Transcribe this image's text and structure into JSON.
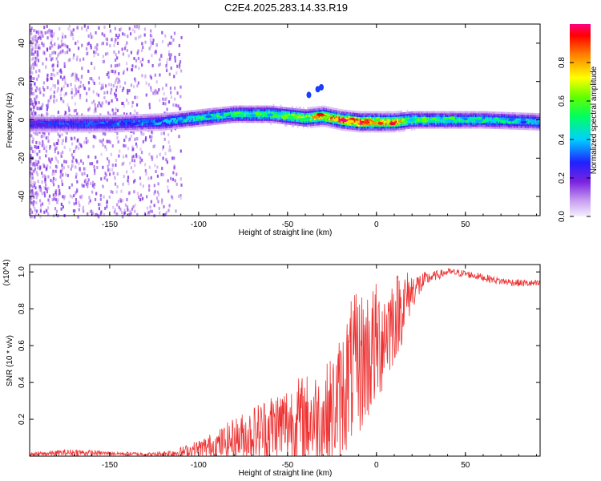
{
  "figure_title": "C2E4.2025.283.14.33.R19",
  "chart_data": [
    {
      "type": "heatmap",
      "title": "C2E4.2025.283.14.33.R19",
      "xlabel": "Height of straight line (km)",
      "ylabel": "Frequency (Hz)",
      "xlim": [
        -195,
        92
      ],
      "ylim": [
        -50,
        50
      ],
      "x_ticks": [
        -150,
        -100,
        -50,
        0,
        50
      ],
      "y_ticks": [
        -40,
        -20,
        0,
        20,
        40
      ],
      "colorbar": {
        "label": "Normalized spectral amplitude",
        "range": [
          0,
          1
        ],
        "ticks": [
          "0.0",
          "0.2",
          "0.4",
          "0.6",
          "0.8"
        ]
      },
      "ridge": {
        "description_points_x": [
          -195,
          -150,
          -120,
          -100,
          -80,
          -60,
          -40,
          -30,
          -20,
          -10,
          0,
          10,
          20,
          40,
          60,
          92
        ],
        "center_freq_y": [
          -2,
          -2,
          -1,
          1,
          3,
          3,
          1,
          2,
          0,
          -1,
          -1,
          -1,
          0,
          0,
          0,
          -1
        ],
        "peak_amplitude": [
          0.3,
          0.35,
          0.4,
          0.5,
          0.55,
          0.6,
          0.75,
          0.9,
          0.95,
          1.0,
          0.95,
          0.9,
          0.6,
          0.55,
          0.5,
          0.45
        ]
      }
    },
    {
      "type": "line",
      "xlabel": "Height of straight line (km)",
      "ylabel": "SNR (10 * v/v)",
      "y_multiplier": "(x10^4)",
      "xlim": [
        -195,
        92
      ],
      "ylim": [
        0,
        1.04
      ],
      "x_ticks": [
        -150,
        -100,
        -50,
        0,
        50
      ],
      "y_ticks": [
        0.2,
        0.4,
        0.6,
        0.8,
        1.0
      ],
      "color": "#ee3333",
      "envelope": {
        "x": [
          -195,
          -170,
          -150,
          -125,
          -110,
          -100,
          -90,
          -80,
          -70,
          -60,
          -50,
          -40,
          -30,
          -25,
          -20,
          -15,
          -10,
          -5,
          0,
          5,
          10,
          15,
          20,
          30,
          40,
          50,
          60,
          70,
          80,
          92
        ],
        "mean": [
          0.01,
          0.02,
          0.015,
          0.01,
          0.02,
          0.04,
          0.06,
          0.09,
          0.12,
          0.15,
          0.18,
          0.2,
          0.2,
          0.25,
          0.32,
          0.45,
          0.5,
          0.55,
          0.6,
          0.68,
          0.75,
          0.82,
          0.9,
          0.97,
          1.0,
          0.99,
          0.97,
          0.95,
          0.94,
          0.935
        ],
        "amp": [
          0.01,
          0.02,
          0.01,
          0.01,
          0.03,
          0.05,
          0.08,
          0.12,
          0.15,
          0.2,
          0.22,
          0.25,
          0.28,
          0.3,
          0.35,
          0.4,
          0.4,
          0.38,
          0.35,
          0.3,
          0.25,
          0.2,
          0.1,
          0.03,
          0.02,
          0.02,
          0.02,
          0.02,
          0.02,
          0.02
        ]
      }
    }
  ]
}
